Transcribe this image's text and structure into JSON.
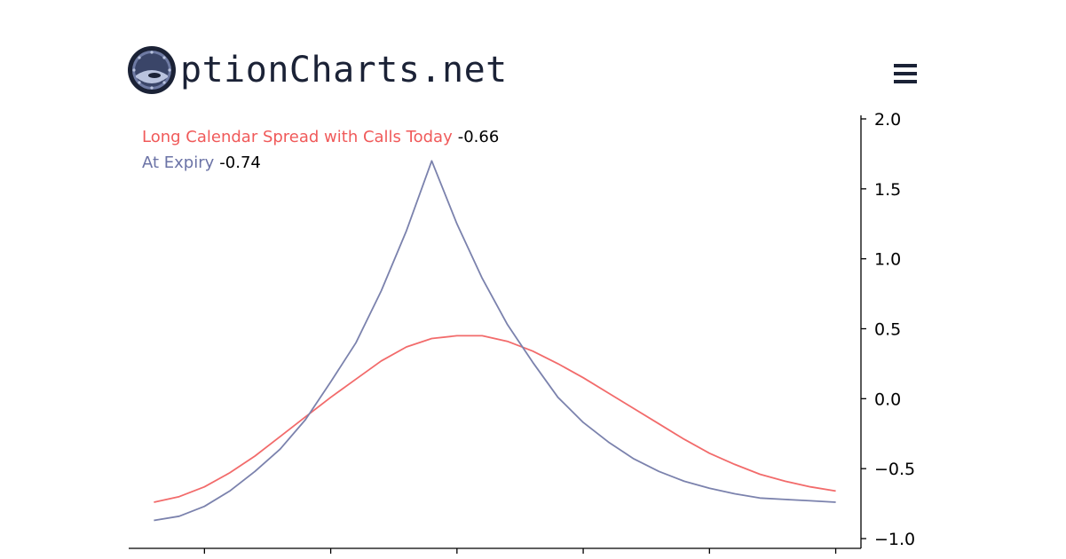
{
  "brand": {
    "name": "ptionCharts.net",
    "logo_icon": "ship-porthole-icon"
  },
  "header": {
    "menu_icon": "hamburger-menu-icon"
  },
  "legend": {
    "today_label": "Long Calendar Spread with Calls Today",
    "today_value": "-0.66",
    "expiry_label": "At Expiry",
    "expiry_value": "-0.74"
  },
  "colors": {
    "today": "#f26b6b",
    "expiry": "#7b82ad",
    "brand_dark": "#1b2236"
  },
  "chart_data": {
    "type": "line",
    "title": "",
    "xlabel": "",
    "ylabel": "",
    "x": [
      0,
      0.5,
      1,
      1.5,
      2,
      2.5,
      3,
      3.5,
      4,
      4.5,
      5,
      5.5,
      6,
      6.5,
      7,
      7.5,
      8,
      8.5,
      9,
      9.5,
      10,
      10.5,
      11,
      11.5,
      12,
      12.5,
      13,
      13.5
    ],
    "series": [
      {
        "name": "Long Calendar Spread with Calls Today",
        "color": "#f26b6b",
        "values": [
          -0.74,
          -0.7,
          -0.63,
          -0.53,
          -0.41,
          -0.27,
          -0.13,
          0.01,
          0.14,
          0.27,
          0.37,
          0.43,
          0.45,
          0.45,
          0.41,
          0.34,
          0.25,
          0.15,
          0.04,
          -0.07,
          -0.18,
          -0.29,
          -0.39,
          -0.47,
          -0.54,
          -0.59,
          -0.63,
          -0.66
        ]
      },
      {
        "name": "At Expiry",
        "color": "#7b82ad",
        "values": [
          -0.87,
          -0.84,
          -0.77,
          -0.66,
          -0.52,
          -0.36,
          -0.15,
          0.12,
          0.4,
          0.77,
          1.2,
          1.7,
          1.25,
          0.86,
          0.53,
          0.26,
          0.01,
          -0.17,
          -0.31,
          -0.43,
          -0.52,
          -0.59,
          -0.64,
          -0.68,
          -0.71,
          -0.72,
          -0.73,
          -0.74
        ]
      }
    ],
    "y_ticks": [
      2.0,
      1.5,
      1.0,
      0.5,
      0.0,
      -0.5,
      -1.0
    ],
    "y_tick_labels": [
      "2.0",
      "1.5",
      "1.0",
      "0.5",
      "0.0",
      "−0.5",
      "−1.0"
    ],
    "ylim": [
      -1.0,
      2.0
    ],
    "xlim": [
      -0.5,
      14
    ],
    "x_ticks": [
      1,
      3.5,
      6,
      8.5,
      11,
      13.5
    ],
    "grid": false,
    "legend_position": "top-left"
  }
}
